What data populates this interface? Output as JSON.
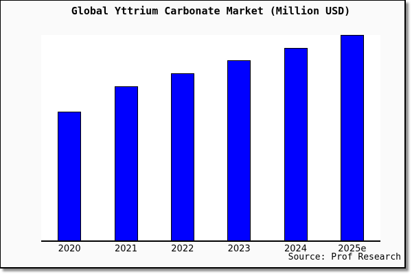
{
  "title": "Global Yttrium Carbonate Market (Million USD)",
  "source_credit": "Source: Prof Research",
  "colors": {
    "bar_fill": "#0000ff",
    "bar_border": "#000000",
    "plot_background": "#ffffff",
    "frame_background": "#fafafa",
    "axis_line": "#000000",
    "text": "#000000"
  },
  "chart_data": {
    "type": "bar",
    "title": "Global Yttrium Carbonate Market (Million USD)",
    "categories": [
      "2020",
      "2021",
      "2022",
      "2023",
      "2024",
      "2025e"
    ],
    "values": [
      62.7,
      75.0,
      81.3,
      87.7,
      93.7,
      100.0
    ],
    "value_scale": "relative units; no y-axis ticks or labels are shown, values estimated from bar heights with tallest bar (2025e) = 100",
    "xlabel": "",
    "ylabel": "",
    "y_axis_visible": false,
    "gridlines": false,
    "legend": false,
    "bar_color": "#0000ff",
    "annotation": "Source: Prof Research"
  }
}
